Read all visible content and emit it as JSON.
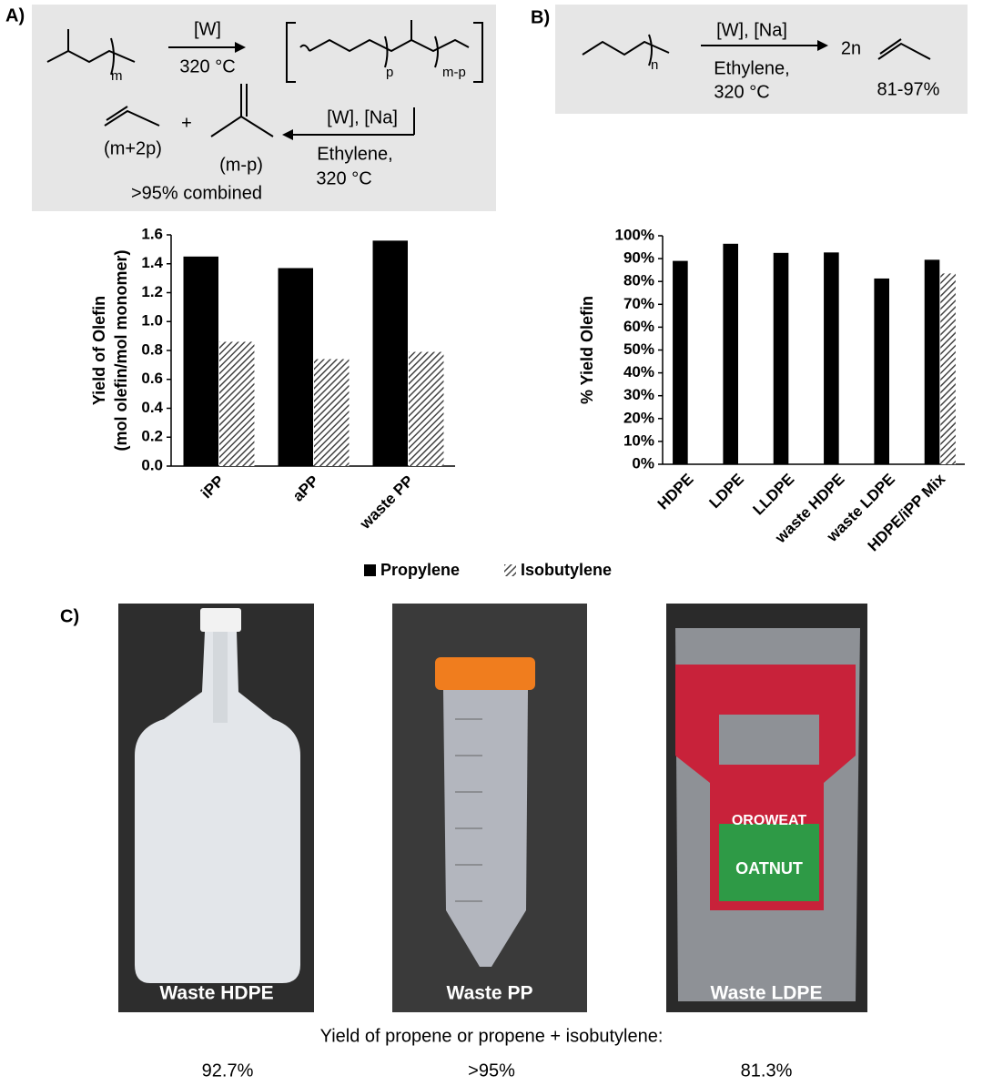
{
  "scheme_a": {
    "label": "A)",
    "m": "m",
    "reagent": "[W]",
    "temp": "320 °C",
    "p": "p",
    "m_minus_p": "m-p",
    "reagent2": "[W], [Na]",
    "gas": "Ethylene,",
    "temp2": "320 °C",
    "propylene_count": "(m+2p)",
    "plus": "+",
    "isobutylene_count": "(m-p)",
    "yield": ">95% combined"
  },
  "scheme_b": {
    "label": "B)",
    "n": "n",
    "reagent": "[W], [Na]",
    "gas": "Ethylene,",
    "temp": "320 °C",
    "coefficient": "2n",
    "yield": "81-97%"
  },
  "chart_data": [
    {
      "type": "bar",
      "y_label": [
        "Yield of Olefin",
        "(mol olefin/mol monomer)"
      ],
      "categories": [
        "iPP",
        "aPP",
        "waste PP"
      ],
      "series": [
        {
          "name": "Propylene",
          "color": "#000000",
          "values": [
            1.45,
            1.37,
            1.56
          ]
        },
        {
          "name": "Isobutylene",
          "color": "#555555",
          "hatch": true,
          "values": [
            0.86,
            0.74,
            0.79
          ]
        }
      ],
      "ylim": [
        0,
        1.6
      ],
      "yticks": [
        {
          "value": 0,
          "label": "0.0"
        },
        0.2,
        0.4,
        0.6,
        0.8,
        {
          "value": 1,
          "label": "1.0"
        },
        1.2,
        1.4,
        1.6
      ],
      "grid": false
    },
    {
      "type": "bar",
      "y_label": [
        "% Yield Olefin"
      ],
      "categories": [
        "HDPE",
        "LDPE",
        "LLDPE",
        "waste HDPE",
        "waste LDPE",
        "HDPE/iPP Mix"
      ],
      "series": [
        {
          "name": "Propylene",
          "color": "#000000",
          "values": [
            89,
            96.5,
            92.5,
            92.7,
            81.3,
            89.5
          ]
        },
        {
          "name": "Isobutylene",
          "color": "#555555",
          "hatch": true,
          "values": [
            null,
            null,
            null,
            null,
            null,
            83.5
          ]
        }
      ],
      "ylim": [
        0,
        100
      ],
      "yticks": [
        {
          "value": 0,
          "label": "0%"
        },
        {
          "value": 10,
          "label": "10%"
        },
        {
          "value": 20,
          "label": "20%"
        },
        {
          "value": 30,
          "label": "30%"
        },
        {
          "value": 40,
          "label": "40%"
        },
        {
          "value": 50,
          "label": "50%"
        },
        {
          "value": 60,
          "label": "60%"
        },
        {
          "value": 70,
          "label": "70%"
        },
        {
          "value": 80,
          "label": "80%"
        },
        {
          "value": 90,
          "label": "90%"
        },
        {
          "value": 100,
          "label": "100%"
        }
      ],
      "grid": false
    }
  ],
  "photos": {
    "label": "C)",
    "items": [
      {
        "caption": "Waste HDPE",
        "yield": "92.7%"
      },
      {
        "caption": "Waste PP",
        "yield": ">95%"
      },
      {
        "caption": "Waste LDPE",
        "yield": "81.3%",
        "package_texts": [
          "OROWEAT",
          "OATNUT"
        ]
      }
    ],
    "yield_heading": "Yield of propene or propene + isobutylene:"
  }
}
